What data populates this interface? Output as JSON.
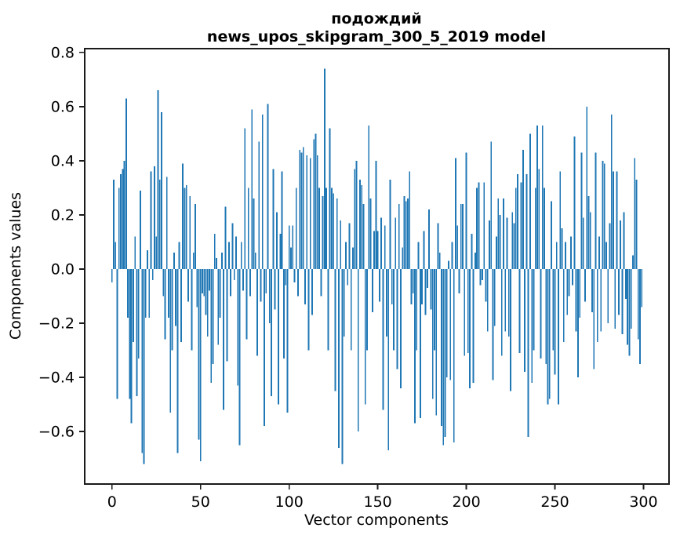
{
  "figure": {
    "title_line1": "подождий",
    "title_line2": "news_upos_skipgram_300_5_2019 model",
    "xlabel": "Vector components",
    "ylabel": "Components values"
  },
  "chart_data": {
    "type": "bar",
    "title": "подождий\nnews_upos_skipgram_300_5_2019 model",
    "xlabel": "Vector components",
    "ylabel": "Components values",
    "n_components": 300,
    "bar_color": "#1f77b4",
    "spine_color": "#1a1a1a",
    "grid": false,
    "legend": null,
    "xlim": [
      -15.4,
      314.4
    ],
    "ylim": [
      -0.794,
      0.814
    ],
    "x_ticks": [
      0,
      50,
      100,
      150,
      200,
      250,
      300
    ],
    "x_tick_labels": [
      "0",
      "50",
      "100",
      "150",
      "200",
      "250",
      "300"
    ],
    "y_ticks": [
      0.8,
      0.6,
      0.4,
      0.2,
      0.0,
      -0.2,
      -0.4,
      -0.6
    ],
    "y_tick_labels": [
      "0.8",
      "0.6",
      "0.4",
      "0.2",
      "0.0",
      "−0.2",
      "−0.4",
      "−0.6"
    ],
    "values": [
      -0.05,
      0.33,
      0.1,
      -0.48,
      0.3,
      0.35,
      0.37,
      0.4,
      0.63,
      -0.18,
      -0.48,
      -0.57,
      -0.27,
      0.12,
      -0.47,
      -0.33,
      0.29,
      -0.68,
      -0.72,
      -0.18,
      0.07,
      -0.18,
      0.36,
      -0.04,
      0.38,
      0.12,
      0.66,
      0.33,
      0.58,
      -0.1,
      -0.26,
      0.34,
      -0.18,
      -0.53,
      -0.3,
      0.06,
      -0.21,
      -0.68,
      0.1,
      -0.27,
      0.39,
      0.3,
      0.31,
      -0.12,
      0.27,
      -0.3,
      0.06,
      0.24,
      -0.14,
      -0.63,
      -0.71,
      -0.09,
      -0.1,
      -0.17,
      -0.25,
      -0.08,
      -0.42,
      -0.35,
      0.13,
      0.04,
      -0.28,
      -0.18,
      0.06,
      -0.52,
      0.23,
      -0.34,
      0.1,
      -0.1,
      0.17,
      -0.04,
      0.12,
      -0.43,
      -0.65,
      0.1,
      -0.08,
      0.52,
      -0.26,
      0.3,
      -0.1,
      0.59,
      0.26,
      0.06,
      -0.32,
      0.47,
      -0.12,
      0.57,
      -0.58,
      -0.09,
      0.61,
      -0.2,
      -0.47,
      0.37,
      -0.15,
      0.21,
      -0.5,
      0.13,
      0.36,
      -0.33,
      -0.06,
      -0.53,
      0.16,
      0.08,
      0.16,
      -0.05,
      0.3,
      -0.1,
      0.44,
      0.43,
      0.45,
      -0.13,
      0.42,
      -0.3,
      0.41,
      -0.17,
      0.48,
      0.5,
      0.42,
      0.3,
      -0.1,
      0.27,
      0.74,
      0.3,
      -0.3,
      0.52,
      0.3,
      0.28,
      -0.45,
      0.26,
      -0.66,
      0.18,
      -0.72,
      -0.25,
      0.1,
      -0.06,
      0.17,
      -0.3,
      0.08,
      0.37,
      0.4,
      -0.6,
      0.33,
      0.31,
      0.24,
      -0.5,
      -0.3,
      0.53,
      0.26,
      -0.16,
      0.14,
      0.4,
      0.14,
      -0.12,
      0.19,
      -0.52,
      0.16,
      -0.25,
      -0.67,
      0.33,
      -0.13,
      -0.3,
      0.19,
      -0.37,
      0.24,
      -0.44,
      0.08,
      0.27,
      0.25,
      0.26,
      0.36,
      -0.13,
      -0.09,
      -0.57,
      -0.3,
      0.1,
      -0.55,
      -0.13,
      0.14,
      -0.17,
      -0.07,
      0.22,
      -0.15,
      -0.48,
      -0.3,
      -0.54,
      0.17,
      0.06,
      -0.58,
      -0.65,
      -0.62,
      -0.4,
      0.03,
      -0.41,
      0.1,
      -0.64,
      0.41,
      0.16,
      -0.09,
      0.24,
      0.24,
      -0.32,
      0.43,
      -0.31,
      -0.44,
      0.13,
      -0.42,
      0.06,
      0.3,
      0.32,
      -0.06,
      -0.04,
      0.32,
      -0.12,
      -0.23,
      0.18,
      0.47,
      -0.41,
      -0.21,
      0.12,
      0.26,
      0.2,
      -0.32,
      0.26,
      -0.23,
      0.19,
      -0.25,
      -0.45,
      0.21,
      0.17,
      0.3,
      0.35,
      -0.31,
      0.32,
      0.44,
      -0.38,
      0.35,
      -0.62,
      0.5,
      -0.42,
      -0.3,
      0.3,
      0.53,
      0.37,
      -0.33,
      0.53,
      0.3,
      -0.35,
      -0.5,
      -0.48,
      0.25,
      -0.3,
      -0.39,
      0.1,
      -0.5,
      0.36,
      0.15,
      -0.27,
      0.1,
      -0.17,
      -0.1,
      0.12,
      -0.06,
      0.49,
      -0.23,
      -0.4,
      -0.18,
      0.43,
      0.19,
      -0.12,
      0.6,
      0.27,
      0.21,
      -0.16,
      -0.37,
      0.43,
      -0.27,
      0.12,
      -0.23,
      0.4,
      0.39,
      0.1,
      -0.2,
      0.17,
      0.57,
      0.36,
      -0.22,
      0.36,
      -0.17,
      0.18,
      -0.24,
      0.21,
      -0.11,
      -0.28,
      -0.32,
      -0.22,
      0.05,
      0.41,
      0.33,
      -0.26,
      -0.35,
      -0.14
    ]
  }
}
